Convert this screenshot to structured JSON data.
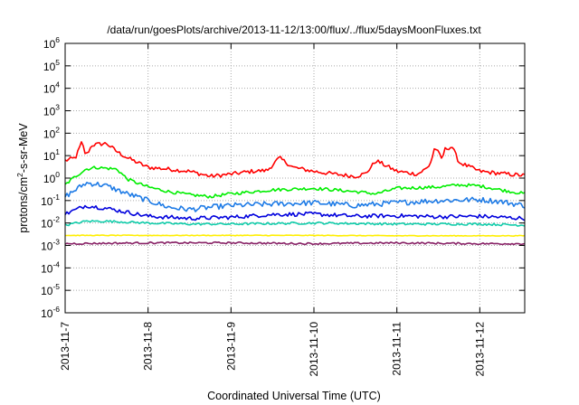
{
  "chart_data": {
    "type": "line",
    "title": "/data/run/goesPlots/archive/2013-11-12/13:00/flux/../flux/5daysMoonFluxes.txt",
    "xlabel": "Coordinated Universal Time (UTC)",
    "ylabel_parts": [
      "protons/cm",
      "2",
      "-s-sr-MeV"
    ],
    "y_scale": "log",
    "ylim_exp": [
      -6,
      6
    ],
    "y_ticks": [
      {
        "base": "10",
        "exp": "6"
      },
      {
        "base": "10",
        "exp": "5"
      },
      {
        "base": "10",
        "exp": "4"
      },
      {
        "base": "10",
        "exp": "3"
      },
      {
        "base": "10",
        "exp": "2"
      },
      {
        "base": "10",
        "exp": "1"
      },
      {
        "base": "10",
        "exp": "0"
      },
      {
        "base": "10",
        "exp": "-1"
      },
      {
        "base": "10",
        "exp": "-2"
      },
      {
        "base": "10",
        "exp": "-3"
      },
      {
        "base": "10",
        "exp": "-4"
      },
      {
        "base": "10",
        "exp": "-5"
      },
      {
        "base": "10",
        "exp": "-6"
      }
    ],
    "x_ticks": [
      "2013-11-7",
      "2013-11-8",
      "2013-11-9",
      "2013-11-10",
      "2013-11-11",
      "2013-11-12"
    ],
    "x_range_days": [
      "2013-11-07",
      "2013-11-12 13:00"
    ],
    "grid": true,
    "legend": "none",
    "series": [
      {
        "color": "#ff0000",
        "x": [
          "2013-11-07",
          "2013-11-07 03:00",
          "2013-11-07 04:50",
          "2013-11-07 06:00",
          "2013-11-07 07:50",
          "2013-11-07 12:00",
          "2013-11-07 15:00",
          "2013-11-07 18:00",
          "2013-11-08",
          "2013-11-08 06:00",
          "2013-11-08 12:00",
          "2013-11-08 18:00",
          "2013-11-09",
          "2013-11-09 06:00",
          "2013-11-09 10:30",
          "2013-11-09 14:00",
          "2013-11-09 18:00",
          "2013-11-10",
          "2013-11-10 06:00",
          "2013-11-10 12:00",
          "2013-11-10 15:00",
          "2013-11-10 18:00",
          "2013-11-11",
          "2013-11-11 06:00",
          "2013-11-11 09:00",
          "2013-11-11 10:00",
          "2013-11-11 11:00",
          "2013-11-11 13:00",
          "2013-11-11 14:00",
          "2013-11-11 16:00",
          "2013-11-11 18:00",
          "2013-11-12",
          "2013-11-12 06:00",
          "2013-11-12 13:00"
        ],
        "y": [
          6,
          8,
          40,
          10,
          30,
          35,
          15,
          8,
          3,
          2.5,
          2,
          1.2,
          1.5,
          2,
          2.2,
          8,
          3,
          2,
          1.5,
          1.2,
          1.6,
          6,
          2,
          1.5,
          3,
          6,
          25,
          7,
          20,
          25,
          5,
          2,
          1.6,
          1.3
        ]
      },
      {
        "color": "#00ee00",
        "x": [
          "2013-11-07",
          "2013-11-07 03:00",
          "2013-11-07 06:00",
          "2013-11-07 09:00",
          "2013-11-07 15:00",
          "2013-11-07 18:00",
          "2013-11-08",
          "2013-11-08 06:00",
          "2013-11-08 12:00",
          "2013-11-08 18:00",
          "2013-11-09",
          "2013-11-09 12:00",
          "2013-11-10",
          "2013-11-10 12:00",
          "2013-11-10 18:00",
          "2013-11-11",
          "2013-11-11 12:00",
          "2013-11-11 18:00",
          "2013-11-12",
          "2013-11-12 06:00",
          "2013-11-12 13:00"
        ],
        "y": [
          0.5,
          1.2,
          2.5,
          3,
          2.5,
          0.9,
          0.4,
          0.25,
          0.18,
          0.15,
          0.2,
          0.3,
          0.35,
          0.25,
          0.2,
          0.35,
          0.4,
          0.5,
          0.45,
          0.3,
          0.2
        ]
      },
      {
        "color": "#1e7be6",
        "x": [
          "2013-11-07",
          "2013-11-07 03:00",
          "2013-11-07 06:00",
          "2013-11-07 09:00",
          "2013-11-07 12:00",
          "2013-11-07 18:00",
          "2013-11-08",
          "2013-11-08 06:00",
          "2013-11-08 12:00",
          "2013-11-08 18:00",
          "2013-11-09",
          "2013-11-09 12:00",
          "2013-11-10",
          "2013-11-10 12:00",
          "2013-11-11",
          "2013-11-11 12:00",
          "2013-11-12",
          "2013-11-12 06:00",
          "2013-11-12 13:00"
        ],
        "y": [
          0.15,
          0.3,
          0.6,
          0.55,
          0.45,
          0.2,
          0.1,
          0.05,
          0.04,
          0.05,
          0.06,
          0.07,
          0.08,
          0.06,
          0.08,
          0.1,
          0.11,
          0.09,
          0.06
        ]
      },
      {
        "color": "#0000dd",
        "x": [
          "2013-11-07",
          "2013-11-07 06:00",
          "2013-11-07 12:00",
          "2013-11-08",
          "2013-11-08 12:00",
          "2013-11-09",
          "2013-11-09 12:00",
          "2013-11-10",
          "2013-11-10 12:00",
          "2013-11-11",
          "2013-11-11 12:00",
          "2013-11-12",
          "2013-11-12 13:00"
        ],
        "y": [
          0.025,
          0.06,
          0.045,
          0.02,
          0.016,
          0.018,
          0.024,
          0.025,
          0.02,
          0.021,
          0.019,
          0.02,
          0.016
        ]
      },
      {
        "color": "#11ccaa",
        "x": [
          "2013-11-07",
          "2013-11-07 06:00",
          "2013-11-07 12:00",
          "2013-11-08",
          "2013-11-08 12:00",
          "2013-11-09",
          "2013-11-10",
          "2013-11-11",
          "2013-11-12",
          "2013-11-12 13:00"
        ],
        "y": [
          0.008,
          0.012,
          0.012,
          0.01,
          0.009,
          0.009,
          0.01,
          0.009,
          0.009,
          0.008
        ]
      },
      {
        "color": "#ffee00",
        "x": [
          "2013-11-07",
          "2013-11-08",
          "2013-11-09",
          "2013-11-10",
          "2013-11-11",
          "2013-11-12",
          "2013-11-12 13:00"
        ],
        "y": [
          0.0028,
          0.0028,
          0.0028,
          0.0028,
          0.0027,
          0.0027,
          0.0027
        ]
      },
      {
        "color": "#882266",
        "x": [
          "2013-11-07",
          "2013-11-08",
          "2013-11-09",
          "2013-11-10",
          "2013-11-11",
          "2013-11-12",
          "2013-11-12 13:00"
        ],
        "y": [
          0.0012,
          0.0013,
          0.0013,
          0.0012,
          0.0013,
          0.0012,
          0.0012
        ]
      }
    ]
  }
}
